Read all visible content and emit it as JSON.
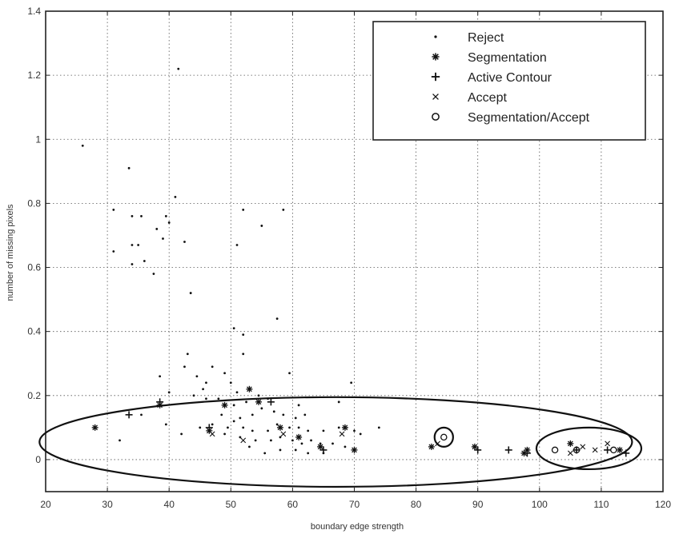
{
  "chart_data": {
    "type": "scatter",
    "xlabel": "boundary edge strength",
    "ylabel": "number of missing pixels",
    "xlim": [
      20,
      120
    ],
    "ylim": [
      -0.1,
      1.4
    ],
    "xticks": [
      20,
      30,
      40,
      50,
      60,
      70,
      80,
      90,
      100,
      110,
      120
    ],
    "yticks": [
      0,
      0.2,
      0.4,
      0.6,
      0.8,
      1,
      1.2,
      1.4
    ],
    "ytick_labels": [
      "0",
      "0.2",
      "0.4",
      "0.6",
      "0.8",
      "1",
      "1.2",
      "1.4"
    ],
    "grid": true,
    "legend_position": "top-right",
    "series": [
      {
        "name": "Reject",
        "marker": "dot",
        "points": [
          [
            26,
            0.98
          ],
          [
            33.5,
            0.91
          ],
          [
            41.5,
            1.22
          ],
          [
            31,
            0.78
          ],
          [
            34,
            0.76
          ],
          [
            35.5,
            0.76
          ],
          [
            38,
            0.72
          ],
          [
            39.5,
            0.76
          ],
          [
            40,
            0.74
          ],
          [
            41,
            0.82
          ],
          [
            39,
            0.69
          ],
          [
            42.5,
            0.68
          ],
          [
            31,
            0.65
          ],
          [
            34,
            0.67
          ],
          [
            35,
            0.67
          ],
          [
            34,
            0.61
          ],
          [
            36,
            0.62
          ],
          [
            37.5,
            0.58
          ],
          [
            51,
            0.67
          ],
          [
            52,
            0.78
          ],
          [
            55,
            0.73
          ],
          [
            58.5,
            0.78
          ],
          [
            43.5,
            0.52
          ],
          [
            50.5,
            0.41
          ],
          [
            52,
            0.39
          ],
          [
            57.5,
            0.44
          ],
          [
            43,
            0.33
          ],
          [
            52,
            0.33
          ],
          [
            42.5,
            0.29
          ],
          [
            47,
            0.29
          ],
          [
            38.5,
            0.26
          ],
          [
            44.5,
            0.26
          ],
          [
            49,
            0.27
          ],
          [
            45.5,
            0.22
          ],
          [
            40,
            0.21
          ],
          [
            46,
            0.24
          ],
          [
            50,
            0.24
          ],
          [
            51,
            0.21
          ],
          [
            56,
            0.19
          ],
          [
            59.5,
            0.27
          ],
          [
            69.5,
            0.24
          ],
          [
            54.5,
            0.2
          ],
          [
            44,
            0.2
          ],
          [
            46,
            0.19
          ],
          [
            48,
            0.19
          ],
          [
            50.5,
            0.17
          ],
          [
            52.5,
            0.18
          ],
          [
            55,
            0.16
          ],
          [
            57,
            0.15
          ],
          [
            58.5,
            0.14
          ],
          [
            48.5,
            0.14
          ],
          [
            50.5,
            0.12
          ],
          [
            51.5,
            0.13
          ],
          [
            53.5,
            0.14
          ],
          [
            60.5,
            0.13
          ],
          [
            62,
            0.14
          ],
          [
            47,
            0.11
          ],
          [
            49.5,
            0.1
          ],
          [
            52,
            0.1
          ],
          [
            53.5,
            0.09
          ],
          [
            56,
            0.09
          ],
          [
            57.5,
            0.11
          ],
          [
            59.5,
            0.1
          ],
          [
            61,
            0.1
          ],
          [
            62.5,
            0.09
          ],
          [
            65,
            0.09
          ],
          [
            67.5,
            0.1
          ],
          [
            70,
            0.09
          ],
          [
            71,
            0.08
          ],
          [
            74,
            0.1
          ],
          [
            39.5,
            0.11
          ],
          [
            42,
            0.08
          ],
          [
            45,
            0.1
          ],
          [
            49,
            0.08
          ],
          [
            51.5,
            0.07
          ],
          [
            54,
            0.06
          ],
          [
            56.5,
            0.06
          ],
          [
            58,
            0.07
          ],
          [
            60,
            0.06
          ],
          [
            61.5,
            0.05
          ],
          [
            63,
            0.06
          ],
          [
            64.5,
            0.05
          ],
          [
            66.5,
            0.05
          ],
          [
            68.5,
            0.04
          ],
          [
            53,
            0.04
          ],
          [
            55.5,
            0.02
          ],
          [
            58,
            0.03
          ],
          [
            60.5,
            0.03
          ],
          [
            62.5,
            0.02
          ],
          [
            65,
            0.02
          ],
          [
            32,
            0.06
          ],
          [
            35.5,
            0.14
          ],
          [
            61,
            0.17
          ],
          [
            67.5,
            0.18
          ]
        ]
      },
      {
        "name": "Segmentation",
        "marker": "asterisk",
        "points": [
          [
            28,
            0.1
          ],
          [
            38.5,
            0.17
          ],
          [
            46.5,
            0.09
          ],
          [
            53,
            0.22
          ],
          [
            49,
            0.17
          ],
          [
            54.5,
            0.18
          ],
          [
            58,
            0.1
          ],
          [
            61,
            0.07
          ],
          [
            64.5,
            0.04
          ],
          [
            68.5,
            0.1
          ],
          [
            70,
            0.03
          ],
          [
            82.5,
            0.04
          ],
          [
            89.5,
            0.04
          ],
          [
            97.5,
            0.02
          ],
          [
            98,
            0.03
          ],
          [
            105,
            0.05
          ],
          [
            113,
            0.03
          ]
        ]
      },
      {
        "name": "Active Contour",
        "marker": "plus",
        "points": [
          [
            33.5,
            0.14
          ],
          [
            38.5,
            0.18
          ],
          [
            46.5,
            0.1
          ],
          [
            56.5,
            0.18
          ],
          [
            65,
            0.03
          ],
          [
            90,
            0.03
          ],
          [
            95,
            0.03
          ],
          [
            98,
            0.02
          ],
          [
            106,
            0.03
          ],
          [
            111,
            0.03
          ],
          [
            114,
            0.02
          ]
        ]
      },
      {
        "name": "Accept",
        "marker": "x",
        "points": [
          [
            47,
            0.08
          ],
          [
            52,
            0.06
          ],
          [
            58.5,
            0.08
          ],
          [
            68,
            0.08
          ],
          [
            83.5,
            0.05
          ],
          [
            105,
            0.02
          ],
          [
            107,
            0.04
          ],
          [
            109,
            0.03
          ],
          [
            111,
            0.05
          ]
        ]
      },
      {
        "name": "Segmentation/Accept",
        "marker": "circle",
        "points": [
          [
            84.5,
            0.07
          ],
          [
            102.5,
            0.03
          ],
          [
            106,
            0.03
          ],
          [
            112,
            0.03
          ]
        ]
      }
    ],
    "annotations": [
      {
        "type": "ellipse",
        "cx": 67,
        "cy": 0.055,
        "rx": 48,
        "ry": 0.14
      },
      {
        "type": "ellipse",
        "cx": 108,
        "cy": 0.035,
        "rx": 8.5,
        "ry": 0.065
      },
      {
        "type": "circle",
        "cx": 84.5,
        "cy": 0.07,
        "rx": 1.5,
        "ry": 0.03
      }
    ]
  }
}
